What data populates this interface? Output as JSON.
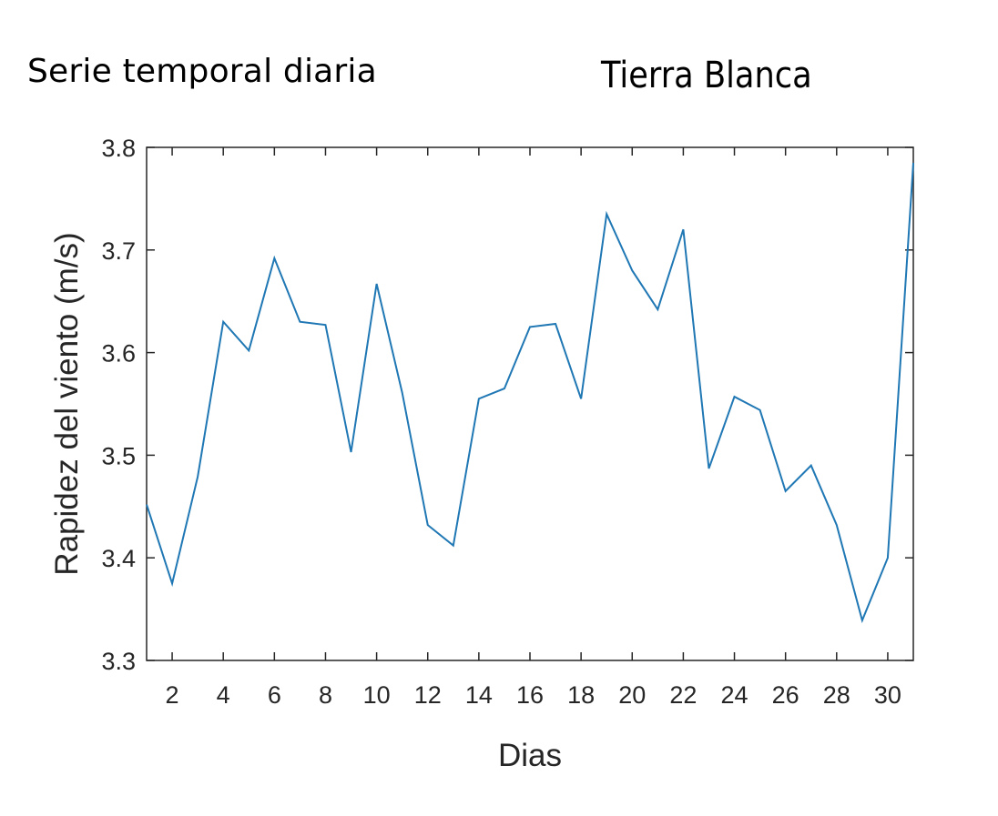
{
  "header": {
    "left_title": "Serie temporal diaria",
    "right_title": "Tierra Blanca"
  },
  "chart_data": {
    "type": "line",
    "title": "",
    "xlabel": "Dias",
    "ylabel": "Rapidez del viento (m/s)",
    "xlim": [
      1,
      31
    ],
    "ylim": [
      3.3,
      3.8
    ],
    "xticks": [
      2,
      4,
      6,
      8,
      10,
      12,
      14,
      16,
      18,
      20,
      22,
      24,
      26,
      28,
      30
    ],
    "yticks": [
      3.3,
      3.4,
      3.5,
      3.6,
      3.7,
      3.8
    ],
    "grid": false,
    "line_color": "#1f77b4",
    "series": [
      {
        "x": [
          1,
          2,
          3,
          4,
          5,
          6,
          7,
          8,
          9,
          10,
          11,
          12,
          13,
          14,
          15,
          16,
          17,
          18,
          19,
          20,
          21,
          22,
          23,
          24,
          25,
          26,
          27,
          28,
          29,
          30,
          31
        ],
        "values": [
          3.452,
          3.375,
          3.479,
          3.63,
          3.602,
          3.692,
          3.63,
          3.627,
          3.503,
          3.667,
          3.561,
          3.432,
          3.412,
          3.555,
          3.565,
          3.625,
          3.628,
          3.555,
          3.735,
          3.68,
          3.642,
          3.72,
          3.487,
          3.557,
          3.544,
          3.465,
          3.49,
          3.432,
          3.339,
          3.4,
          3.785
        ]
      }
    ]
  }
}
